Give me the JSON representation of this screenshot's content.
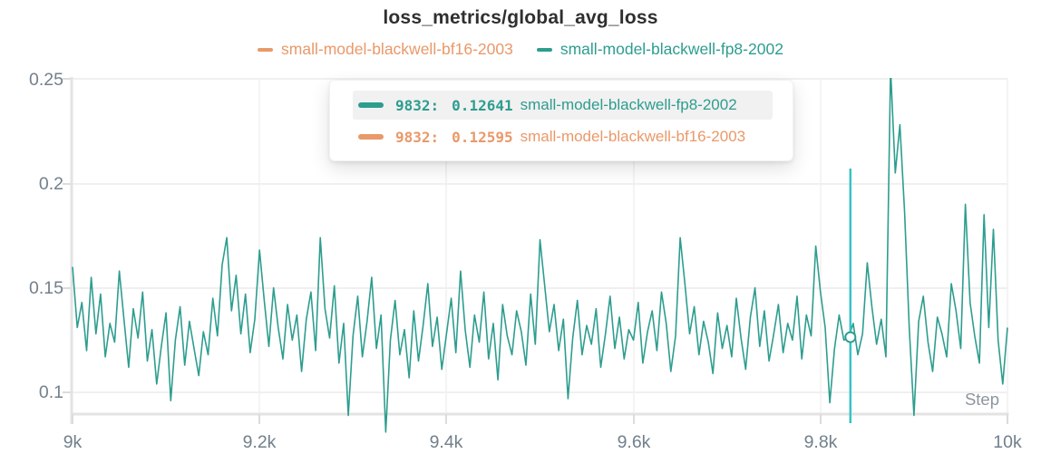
{
  "title": "loss_metrics/global_avg_loss",
  "legend": {
    "items": [
      {
        "label": "small-model-blackwell-bf16-2003",
        "color": "#e9996a"
      },
      {
        "label": "small-model-blackwell-fp8-2002",
        "color": "#2d9d8f"
      }
    ]
  },
  "tooltip": {
    "rows": [
      {
        "step": "9832:",
        "value": "0.12641",
        "name": "small-model-blackwell-fp8-2002",
        "color": "#2d9d8f",
        "highlighted": true
      },
      {
        "step": "9832:",
        "value": "0.12595",
        "name": "small-model-blackwell-bf16-2003",
        "color": "#e9996a",
        "highlighted": false
      }
    ]
  },
  "axes": {
    "x_label": "Step",
    "x_ticks": [
      "9k",
      "9.2k",
      "9.4k",
      "9.6k",
      "9.8k",
      "10k"
    ],
    "y_ticks": [
      "0.25",
      "0.2",
      "0.15",
      "0.1"
    ]
  },
  "colors": {
    "series_teal": "#2d9d8f",
    "series_orange": "#e9996a",
    "cursor_line": "#38c3c6",
    "grid": "#ececec",
    "axis": "#e3e3e3",
    "tick_label": "#72808c"
  },
  "chart_data": {
    "type": "line",
    "title": "loss_metrics/global_avg_loss",
    "xlabel": "Step",
    "ylabel": "",
    "x_range": [
      9000,
      10000
    ],
    "ylim": [
      0.0896,
      0.25
    ],
    "x_tick_values": [
      9000,
      9200,
      9400,
      9600,
      9800,
      10000
    ],
    "y_tick_values": [
      0.25,
      0.2,
      0.15,
      0.1
    ],
    "grid": true,
    "legend_position": "top",
    "cursor": {
      "step": 9832,
      "marker_series": "small-model-blackwell-fp8-2002",
      "values": {
        "small-model-blackwell-fp8-2002": 0.12641,
        "small-model-blackwell-bf16-2003": 0.12595
      }
    },
    "series": [
      {
        "name": "small-model-blackwell-fp8-2002",
        "color": "#2d9d8f",
        "x_start": 9000,
        "x_step": 5,
        "values": [
          0.16,
          0.131,
          0.143,
          0.12,
          0.155,
          0.128,
          0.147,
          0.117,
          0.133,
          0.124,
          0.158,
          0.135,
          0.112,
          0.14,
          0.126,
          0.148,
          0.115,
          0.13,
          0.104,
          0.122,
          0.138,
          0.096,
          0.125,
          0.141,
          0.113,
          0.134,
          0.121,
          0.108,
          0.129,
          0.118,
          0.145,
          0.127,
          0.161,
          0.174,
          0.139,
          0.156,
          0.128,
          0.147,
          0.119,
          0.135,
          0.168,
          0.144,
          0.122,
          0.15,
          0.131,
          0.116,
          0.142,
          0.125,
          0.137,
          0.11,
          0.135,
          0.148,
          0.12,
          0.174,
          0.14,
          0.126,
          0.151,
          0.114,
          0.133,
          0.089,
          0.127,
          0.146,
          0.117,
          0.134,
          0.155,
          0.121,
          0.137,
          0.081,
          0.125,
          0.144,
          0.118,
          0.13,
          0.107,
          0.139,
          0.115,
          0.132,
          0.152,
          0.122,
          0.136,
          0.111,
          0.128,
          0.145,
          0.119,
          0.158,
          0.13,
          0.112,
          0.137,
          0.124,
          0.148,
          0.116,
          0.133,
          0.106,
          0.142,
          0.127,
          0.118,
          0.139,
          0.129,
          0.113,
          0.147,
          0.123,
          0.173,
          0.151,
          0.129,
          0.142,
          0.12,
          0.135,
          0.097,
          0.126,
          0.144,
          0.118,
          0.132,
          0.123,
          0.14,
          0.112,
          0.128,
          0.146,
          0.121,
          0.136,
          0.116,
          0.13,
          0.125,
          0.143,
          0.114,
          0.129,
          0.139,
          0.12,
          0.148,
          0.133,
          0.11,
          0.127,
          0.174,
          0.152,
          0.128,
          0.141,
          0.118,
          0.134,
          0.124,
          0.109,
          0.138,
          0.121,
          0.132,
          0.117,
          0.145,
          0.126,
          0.111,
          0.136,
          0.15,
          0.122,
          0.139,
          0.115,
          0.128,
          0.142,
          0.119,
          0.133,
          0.125,
          0.146,
          0.116,
          0.137,
          0.127,
          0.17,
          0.148,
          0.131,
          0.095,
          0.121,
          0.137,
          0.125,
          0.126,
          0.133,
          0.118,
          0.128,
          0.162,
          0.141,
          0.123,
          0.135,
          0.117,
          0.255,
          0.205,
          0.228,
          0.186,
          0.131,
          0.089,
          0.134,
          0.146,
          0.124,
          0.11,
          0.136,
          0.128,
          0.117,
          0.152,
          0.139,
          0.121,
          0.19,
          0.143,
          0.127,
          0.114,
          0.185,
          0.131,
          0.178,
          0.125,
          0.104,
          0.131
        ]
      },
      {
        "name": "small-model-blackwell-bf16-2003",
        "color": "#e9996a",
        "note": "line not visible in this view (occluded behind fp8 series); only cursor value shown",
        "values": []
      }
    ]
  }
}
